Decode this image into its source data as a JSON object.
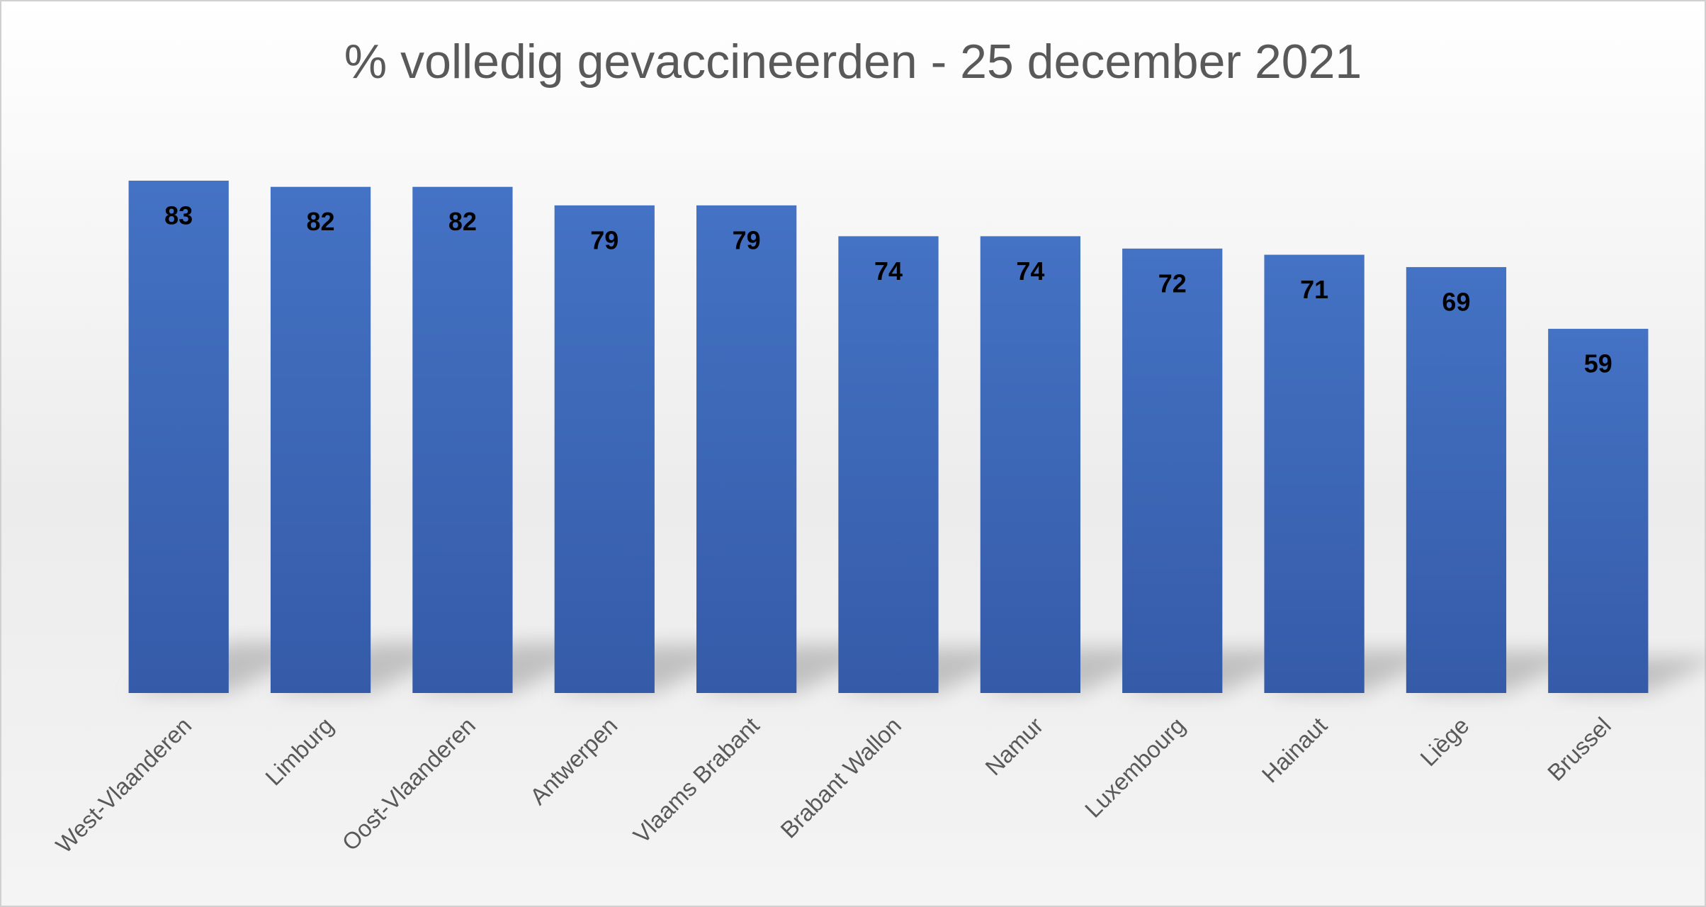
{
  "chart_data": {
    "type": "bar",
    "title": "% volledig gevaccineerden - 25 december 2021",
    "categories": [
      "West-Vlaanderen",
      "Limburg",
      "Oost-Vlaanderen",
      "Antwerpen",
      "Vlaams Brabant",
      "Brabant Wallon",
      "Namur",
      "Luxembourg",
      "Hainaut",
      "Liège",
      "Brussel"
    ],
    "values": [
      83,
      82,
      82,
      79,
      79,
      74,
      74,
      72,
      71,
      69,
      59
    ],
    "color": "#4472c4",
    "ylim": [
      0,
      90
    ]
  }
}
